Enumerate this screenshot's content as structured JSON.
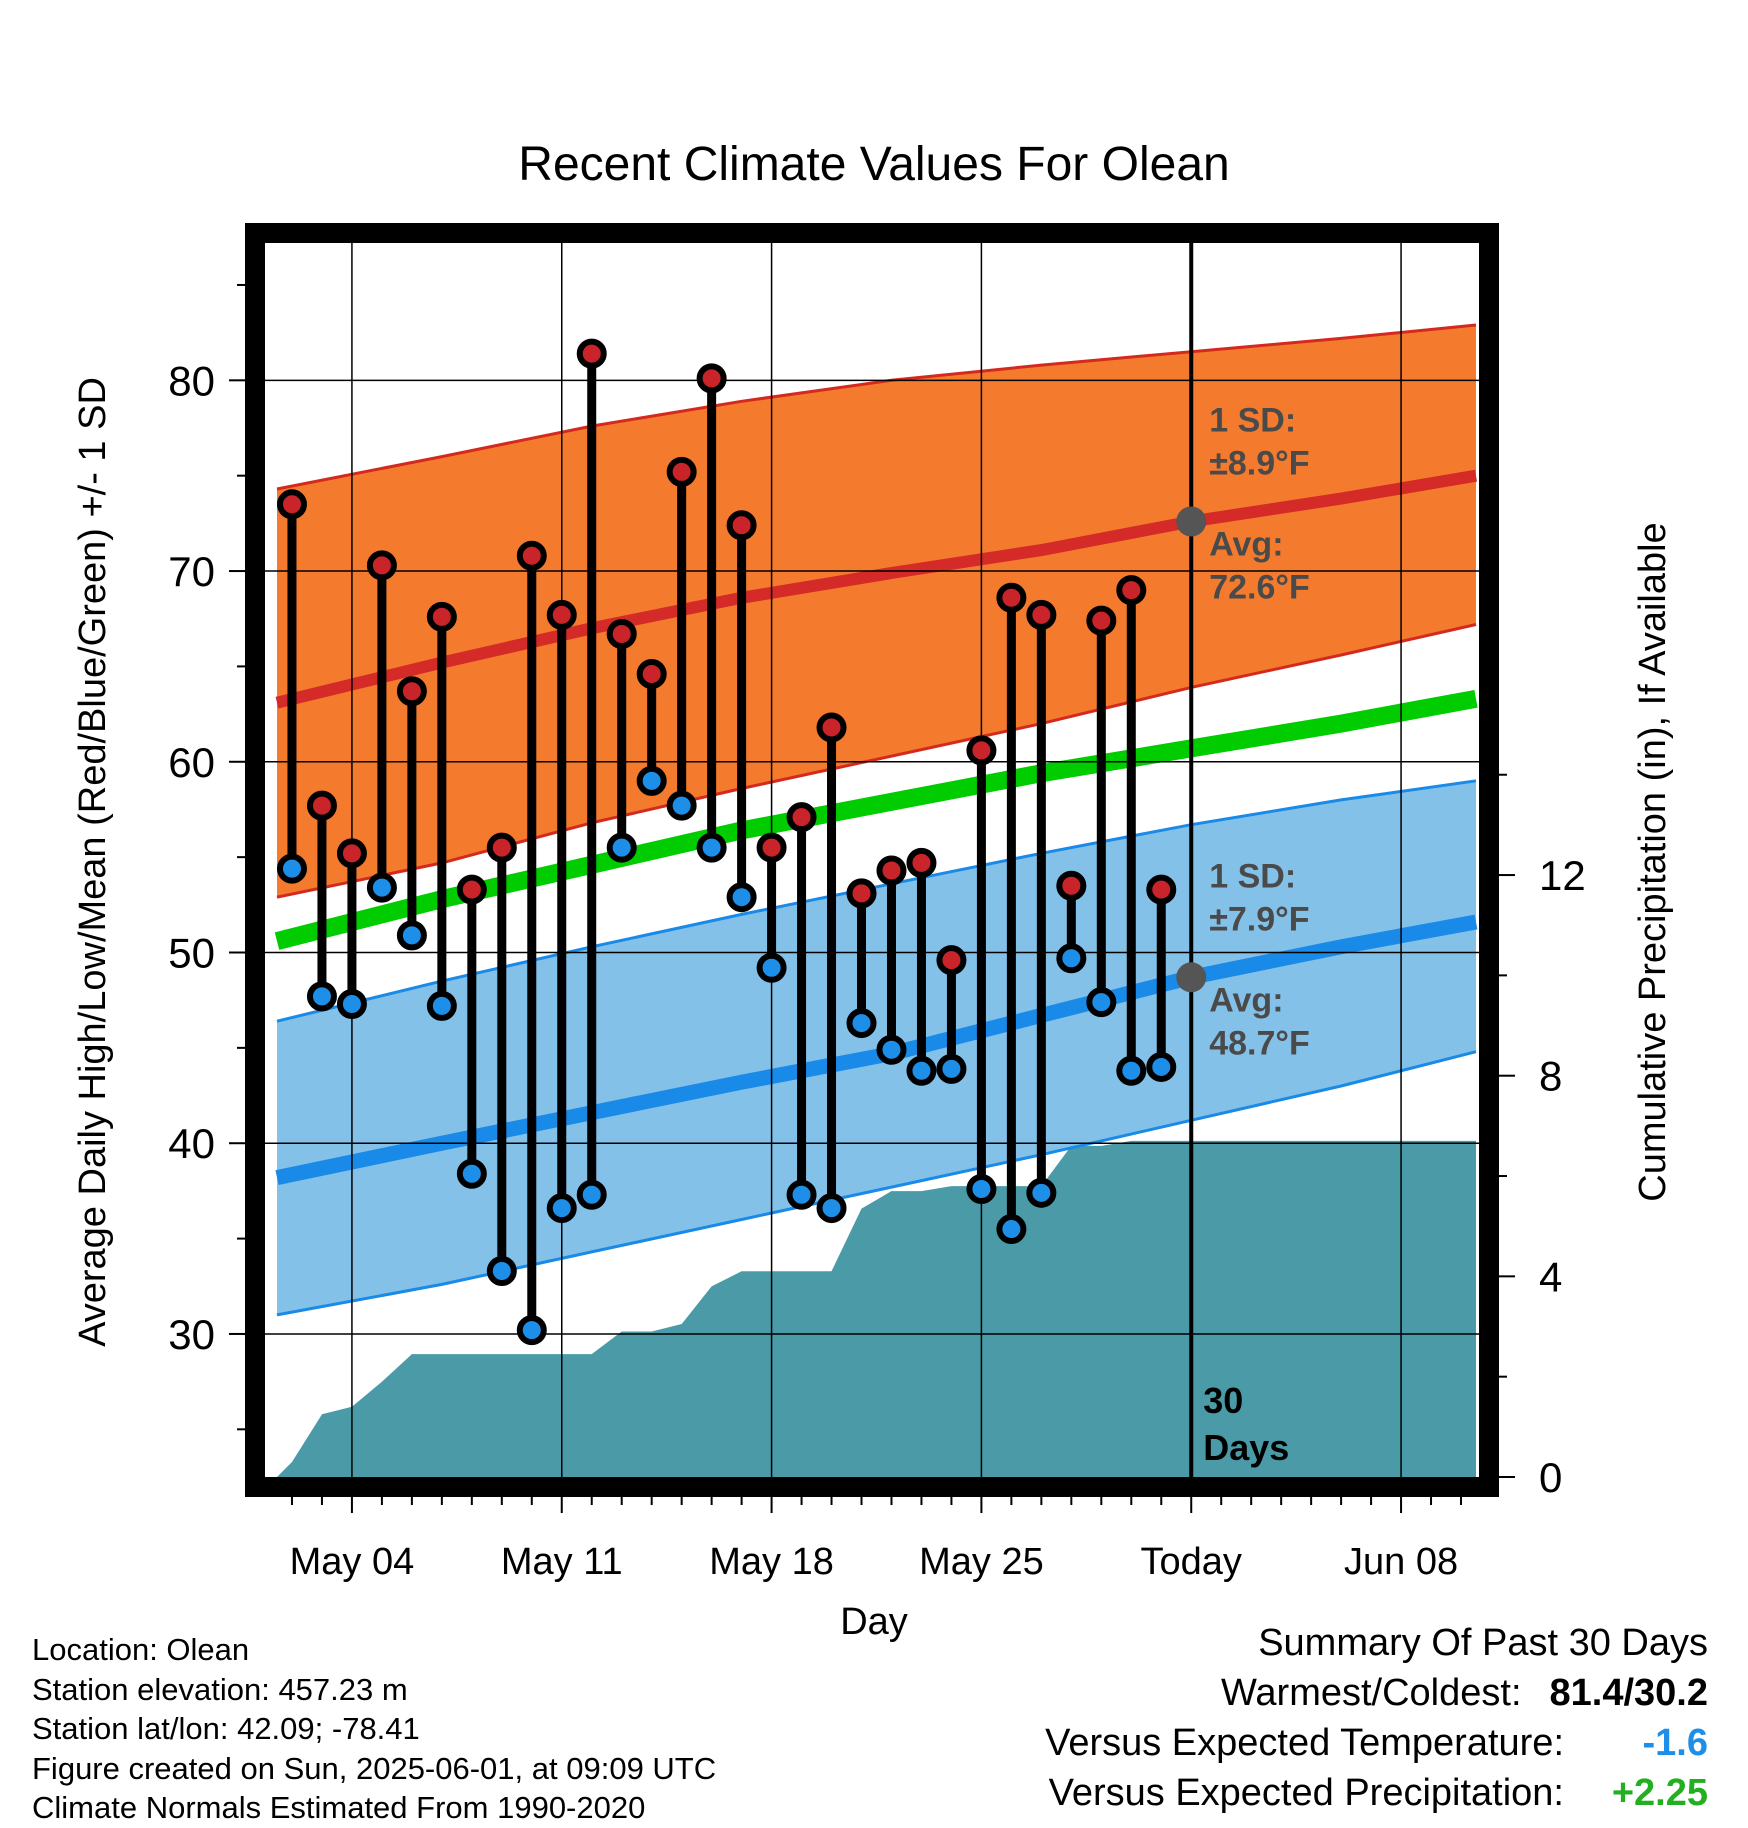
{
  "chart_data": {
    "type": "line",
    "title": "Recent Climate Values For Olean",
    "xlabel": "Day",
    "ylabel": "Average Daily High/Low/Mean (Red/Blue/Green) +/- 1 SD",
    "y2label": "Cumulative Precipitation (in), If Available",
    "x_tick_labels": [
      "May 04",
      "May 11",
      "May 18",
      "May 25",
      "Today",
      "Jun 08"
    ],
    "y_ticks": [
      30,
      40,
      50,
      60,
      70,
      80
    ],
    "y2_ticks": [
      0,
      4,
      8,
      12
    ],
    "ylim": [
      22.5,
      87.2
    ],
    "y2lim": [
      0,
      24.6
    ],
    "xlim": [
      -30.9,
      9.6
    ],
    "x_unit": "days relative to Today (2025-06-01)",
    "grid": true,
    "colors": {
      "high_band": "#f47a2e",
      "high_band_edge": "#d42a1e",
      "high_mean": "#d42a28",
      "low_band": "#84c1e8",
      "low_band_edge": "#1a8ae8",
      "low_mean": "#1a8ae8",
      "mean": "#00cc00",
      "precip": "#4a9ba7",
      "high_dot": "#c8242a",
      "low_dot": "#1e8fe8",
      "avg_marker": "#555555",
      "deficit_text": "#1e8fe8",
      "surplus_text": "#22b022"
    },
    "series": [
      {
        "name": "Normal High",
        "x": [
          -30.5,
          -25,
          -20,
          -15,
          -10,
          -5,
          0,
          5,
          9.5
        ],
        "values": [
          63.1,
          65.2,
          67.0,
          68.6,
          69.9,
          71.1,
          72.6,
          73.8,
          75.0
        ]
      },
      {
        "name": "Normal High +1 SD",
        "x": [
          -30.5,
          -25,
          -20,
          -15,
          -10,
          -5,
          0,
          5,
          9.5
        ],
        "values": [
          74.3,
          76.0,
          77.6,
          78.9,
          80.0,
          80.8,
          81.5,
          82.2,
          82.9
        ]
      },
      {
        "name": "Normal High -1 SD",
        "x": [
          -30.5,
          -25,
          -20,
          -15,
          -10,
          -5,
          0,
          5,
          9.5
        ],
        "values": [
          52.9,
          54.7,
          56.8,
          58.6,
          60.3,
          62.0,
          63.9,
          65.6,
          67.2
        ]
      },
      {
        "name": "Normal Low",
        "x": [
          -30.5,
          -25,
          -20,
          -15,
          -10,
          -5,
          0,
          5,
          9.5
        ],
        "values": [
          38.2,
          40.0,
          41.6,
          43.2,
          44.7,
          46.7,
          48.7,
          50.3,
          51.6
        ]
      },
      {
        "name": "Normal Low +1 SD",
        "x": [
          -30.5,
          -25,
          -20,
          -15,
          -10,
          -5,
          0,
          5,
          9.5
        ],
        "values": [
          46.4,
          48.5,
          50.3,
          52.0,
          53.6,
          55.2,
          56.7,
          58.0,
          59.0
        ]
      },
      {
        "name": "Normal Low -1 SD",
        "x": [
          -30.5,
          -25,
          -20,
          -15,
          -10,
          -5,
          0,
          5,
          9.5
        ],
        "values": [
          31.0,
          32.6,
          34.3,
          36.0,
          37.7,
          39.4,
          41.2,
          43.0,
          44.8
        ]
      },
      {
        "name": "Normal Mean",
        "x": [
          -30.5,
          -25,
          -20,
          -15,
          -10,
          -5,
          0,
          5,
          9.5
        ],
        "values": [
          50.6,
          52.8,
          54.6,
          56.4,
          57.9,
          59.4,
          60.7,
          62.0,
          63.3
        ]
      }
    ],
    "daily": [
      {
        "x": -30,
        "high": 73.5,
        "low": 54.4
      },
      {
        "x": -29,
        "high": 57.7,
        "low": 47.7
      },
      {
        "x": -28,
        "high": 55.2,
        "low": 47.3
      },
      {
        "x": -27,
        "high": 70.3,
        "low": 53.4
      },
      {
        "x": -26,
        "high": 63.7,
        "low": 50.9
      },
      {
        "x": -25,
        "high": 67.6,
        "low": 47.2
      },
      {
        "x": -24,
        "high": 53.3,
        "low": 38.4
      },
      {
        "x": -23,
        "high": 55.5,
        "low": 33.3
      },
      {
        "x": -22,
        "high": 70.8,
        "low": 30.2
      },
      {
        "x": -21,
        "high": 67.7,
        "low": 36.6
      },
      {
        "x": -20,
        "high": 81.4,
        "low": 37.3
      },
      {
        "x": -19,
        "high": 66.7,
        "low": 55.5
      },
      {
        "x": -18,
        "high": 64.6,
        "low": 59.0
      },
      {
        "x": -17,
        "high": 75.2,
        "low": 57.7
      },
      {
        "x": -16,
        "high": 80.1,
        "low": 55.5
      },
      {
        "x": -15,
        "high": 72.4,
        "low": 52.9
      },
      {
        "x": -14,
        "high": 55.5,
        "low": 49.2
      },
      {
        "x": -13,
        "high": 57.1,
        "low": 37.3
      },
      {
        "x": -12,
        "high": 61.8,
        "low": 36.6
      },
      {
        "x": -11,
        "high": 53.1,
        "low": 46.3
      },
      {
        "x": -10,
        "high": 54.3,
        "low": 44.9
      },
      {
        "x": -9,
        "high": 54.7,
        "low": 43.8
      },
      {
        "x": -8,
        "high": 49.6,
        "low": 43.9
      },
      {
        "x": -7,
        "high": 60.6,
        "low": 37.6
      },
      {
        "x": -6,
        "high": 68.6,
        "low": 35.5
      },
      {
        "x": -5,
        "high": 67.7,
        "low": 37.4
      },
      {
        "x": -4,
        "high": 53.5,
        "low": 49.7
      },
      {
        "x": -3,
        "high": 67.4,
        "low": 47.4
      },
      {
        "x": -2,
        "high": 69.0,
        "low": 43.8
      },
      {
        "x": -1,
        "high": 53.3,
        "low": 44.0
      }
    ],
    "precip": {
      "x": [
        -30.5,
        -30,
        -29,
        -28,
        -27,
        -26,
        -25,
        -24,
        -23,
        -22,
        -21,
        -20,
        -19,
        -18,
        -17,
        -16,
        -15,
        -14,
        -13,
        -12,
        -11,
        -10,
        -9,
        -8,
        -7,
        -6,
        -5,
        -4,
        -3,
        -2,
        -1,
        0,
        9.5
      ],
      "values": [
        0.0,
        0.3,
        1.25,
        1.4,
        1.9,
        2.45,
        2.45,
        2.45,
        2.45,
        2.45,
        2.45,
        2.45,
        2.9,
        2.9,
        3.05,
        3.8,
        4.1,
        4.1,
        4.1,
        4.1,
        5.35,
        5.7,
        5.7,
        5.8,
        5.8,
        5.8,
        5.8,
        6.6,
        6.6,
        6.7,
        6.7,
        6.7,
        6.7
      ]
    },
    "annotations": {
      "high_sd_label": "1 SD:",
      "high_sd_value": "±8.9°F",
      "high_avg_label": "Avg:",
      "high_avg_value": "72.6°F",
      "high_avg": 72.6,
      "low_sd_label": "1 SD:",
      "low_sd_value": "±7.9°F",
      "low_avg_label": "Avg:",
      "low_avg_value": "48.7°F",
      "low_avg": 48.7,
      "window_label_line1": "30",
      "window_label_line2": "Days"
    }
  },
  "metadata": {
    "location": "Location: Olean",
    "elevation": "Station elevation: 457.23 m",
    "latlon": "Station lat/lon: 42.09; -78.41",
    "created": "Figure created on Sun, 2025-06-01, at 09:09 UTC",
    "normals": "Climate Normals Estimated From 1990-2020"
  },
  "summary": {
    "heading": "Summary Of Past 30 Days",
    "warm_cold_label": "Warmest/Coldest:",
    "warm_cold_value": "81.4/30.2",
    "temp_label": "Versus Expected Temperature:",
    "temp_value": "-1.6",
    "precip_label": "Versus Expected Precipitation:",
    "precip_value": "+2.25"
  }
}
